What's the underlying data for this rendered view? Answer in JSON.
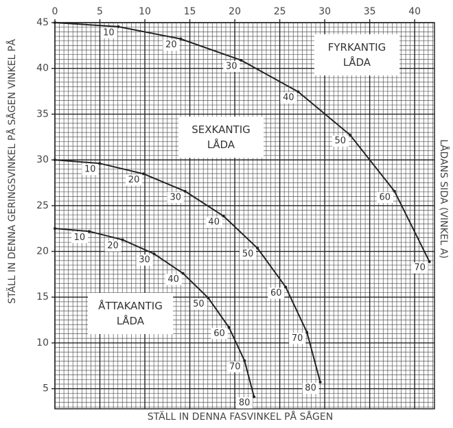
{
  "chart_data": {
    "type": "line",
    "x_label": "STÄLL IN DENNA FASVINKEL PÅ SÅGEN",
    "y_label": "STÄLL IN DENNA GERINGSVINKEL PÅ SÅGEN VINKEL PÅ",
    "y2_label": "LÅDANS SIDA (VINKEL A)",
    "xlim": [
      0,
      42.2
    ],
    "ylim": [
      2.8,
      45
    ],
    "xticks": [
      0,
      5,
      10,
      15,
      20,
      25,
      30,
      35,
      40
    ],
    "yticks": [
      5,
      10,
      15,
      20,
      25,
      30,
      35,
      40,
      45
    ],
    "grid": true,
    "minor_grid_step": 0.5,
    "series": [
      {
        "name": "FYRKANTIG LÅDA",
        "color": "#222222",
        "x": [
          0,
          7.05,
          13.99,
          20.7,
          27.04,
          32.8,
          37.76,
          41.64
        ],
        "values": [
          45,
          44.56,
          43.22,
          40.89,
          37.45,
          32.74,
          26.57,
          18.88
        ],
        "point_labels": [
          null,
          10,
          20,
          30,
          40,
          50,
          60,
          70
        ]
      },
      {
        "name": "SEXKANTIG LÅDA",
        "color": "#222222",
        "x": [
          0,
          4.98,
          9.85,
          14.48,
          18.75,
          22.52,
          25.66,
          28.02,
          29.5
        ],
        "values": [
          30,
          29.62,
          28.48,
          26.57,
          23.86,
          20.36,
          16.1,
          11.17,
          5.72
        ],
        "point_labels": [
          null,
          10,
          20,
          30,
          40,
          50,
          60,
          70,
          80
        ]
      },
      {
        "name": "ÅTTAKANTIG LÅDA",
        "color": "#222222",
        "x": [
          0,
          3.81,
          7.52,
          11.03,
          14.24,
          17.05,
          19.35,
          21.08,
          22.14
        ],
        "values": [
          22.5,
          22.19,
          21.27,
          19.73,
          17.6,
          14.91,
          11.7,
          8.06,
          4.11
        ],
        "point_labels": [
          null,
          10,
          20,
          30,
          40,
          50,
          60,
          70,
          80
        ]
      }
    ]
  }
}
